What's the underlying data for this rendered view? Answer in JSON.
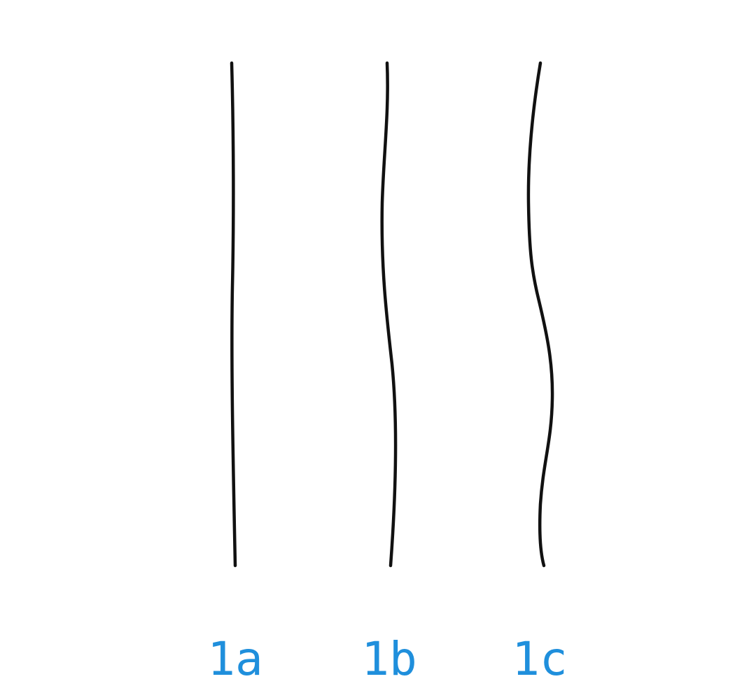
{
  "diagram": {
    "stroke_color": "#111111",
    "label_color": "#1f8fdc",
    "lines": [
      {
        "label": "1a",
        "waviness": "straight"
      },
      {
        "label": "1b",
        "waviness": "slightly wavy"
      },
      {
        "label": "1c",
        "waviness": "wavy"
      }
    ]
  }
}
